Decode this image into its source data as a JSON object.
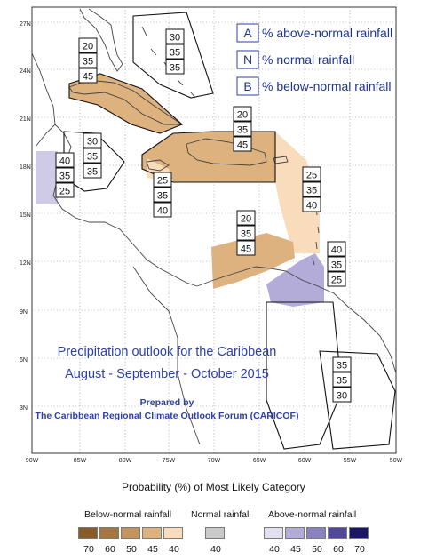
{
  "colors": {
    "above_light": "#cfcae6",
    "above_mid": "#b3acd8",
    "below_45": "#ddb27e",
    "below_40": "#f8dcbc",
    "normal_40": "#c9c9c9",
    "title_blue": "#2d3faa",
    "legend_header_blue": "#1d3497"
  },
  "lat_labels": [
    "27N",
    "24N",
    "21N",
    "18N",
    "15N",
    "12N",
    "9N",
    "6N",
    "3N"
  ],
  "lon_labels": [
    "90W",
    "85W",
    "80W",
    "75W",
    "70W",
    "65W",
    "60W",
    "55W",
    "50W"
  ],
  "header_legend": [
    {
      "letter": "A",
      "text": "% above-normal rainfall"
    },
    {
      "letter": "N",
      "text": "% normal rainfall"
    },
    {
      "letter": "B",
      "text": "% below-normal rainfall"
    }
  ],
  "prob_boxes": [
    {
      "A": "30",
      "N": "35",
      "B": "35"
    },
    {
      "A": "20",
      "N": "35",
      "B": "45"
    },
    {
      "A": "20",
      "N": "35",
      "B": "45"
    },
    {
      "A": "30",
      "N": "35",
      "B": "35"
    },
    {
      "A": "40",
      "N": "35",
      "B": "25"
    },
    {
      "A": "25",
      "N": "35",
      "B": "40"
    },
    {
      "A": "25",
      "N": "35",
      "B": "40"
    },
    {
      "A": "20",
      "N": "35",
      "B": "45"
    },
    {
      "A": "40",
      "N": "35",
      "B": "25"
    },
    {
      "A": "35",
      "N": "35",
      "B": "30"
    }
  ],
  "title_line1": "Precipitation outlook for the Caribbean",
  "title_line2": "August - September - October 2015",
  "prepared_by_line1": "Prepared by",
  "prepared_by_line2": "The Caribbean Regional Climate Outlook Forum (CARICOF)",
  "legend": {
    "title": "Probability (%) of Most Likely Category",
    "below_label": "Below-normal rainfall",
    "normal_label": "Normal rainfall",
    "above_label": "Above-normal rainfall",
    "below_values": [
      "70",
      "60",
      "50",
      "45",
      "40"
    ],
    "below_colors": [
      "#8a5a28",
      "#a8773f",
      "#c39360",
      "#ddb27e",
      "#f8dcbc"
    ],
    "normal_values": [
      "40"
    ],
    "normal_colors": [
      "#c9c9c9"
    ],
    "above_values": [
      "40",
      "45",
      "50",
      "60",
      "70"
    ],
    "above_colors": [
      "#e3e0f2",
      "#b3acd8",
      "#8a82c0",
      "#51479b",
      "#1c1666"
    ]
  }
}
